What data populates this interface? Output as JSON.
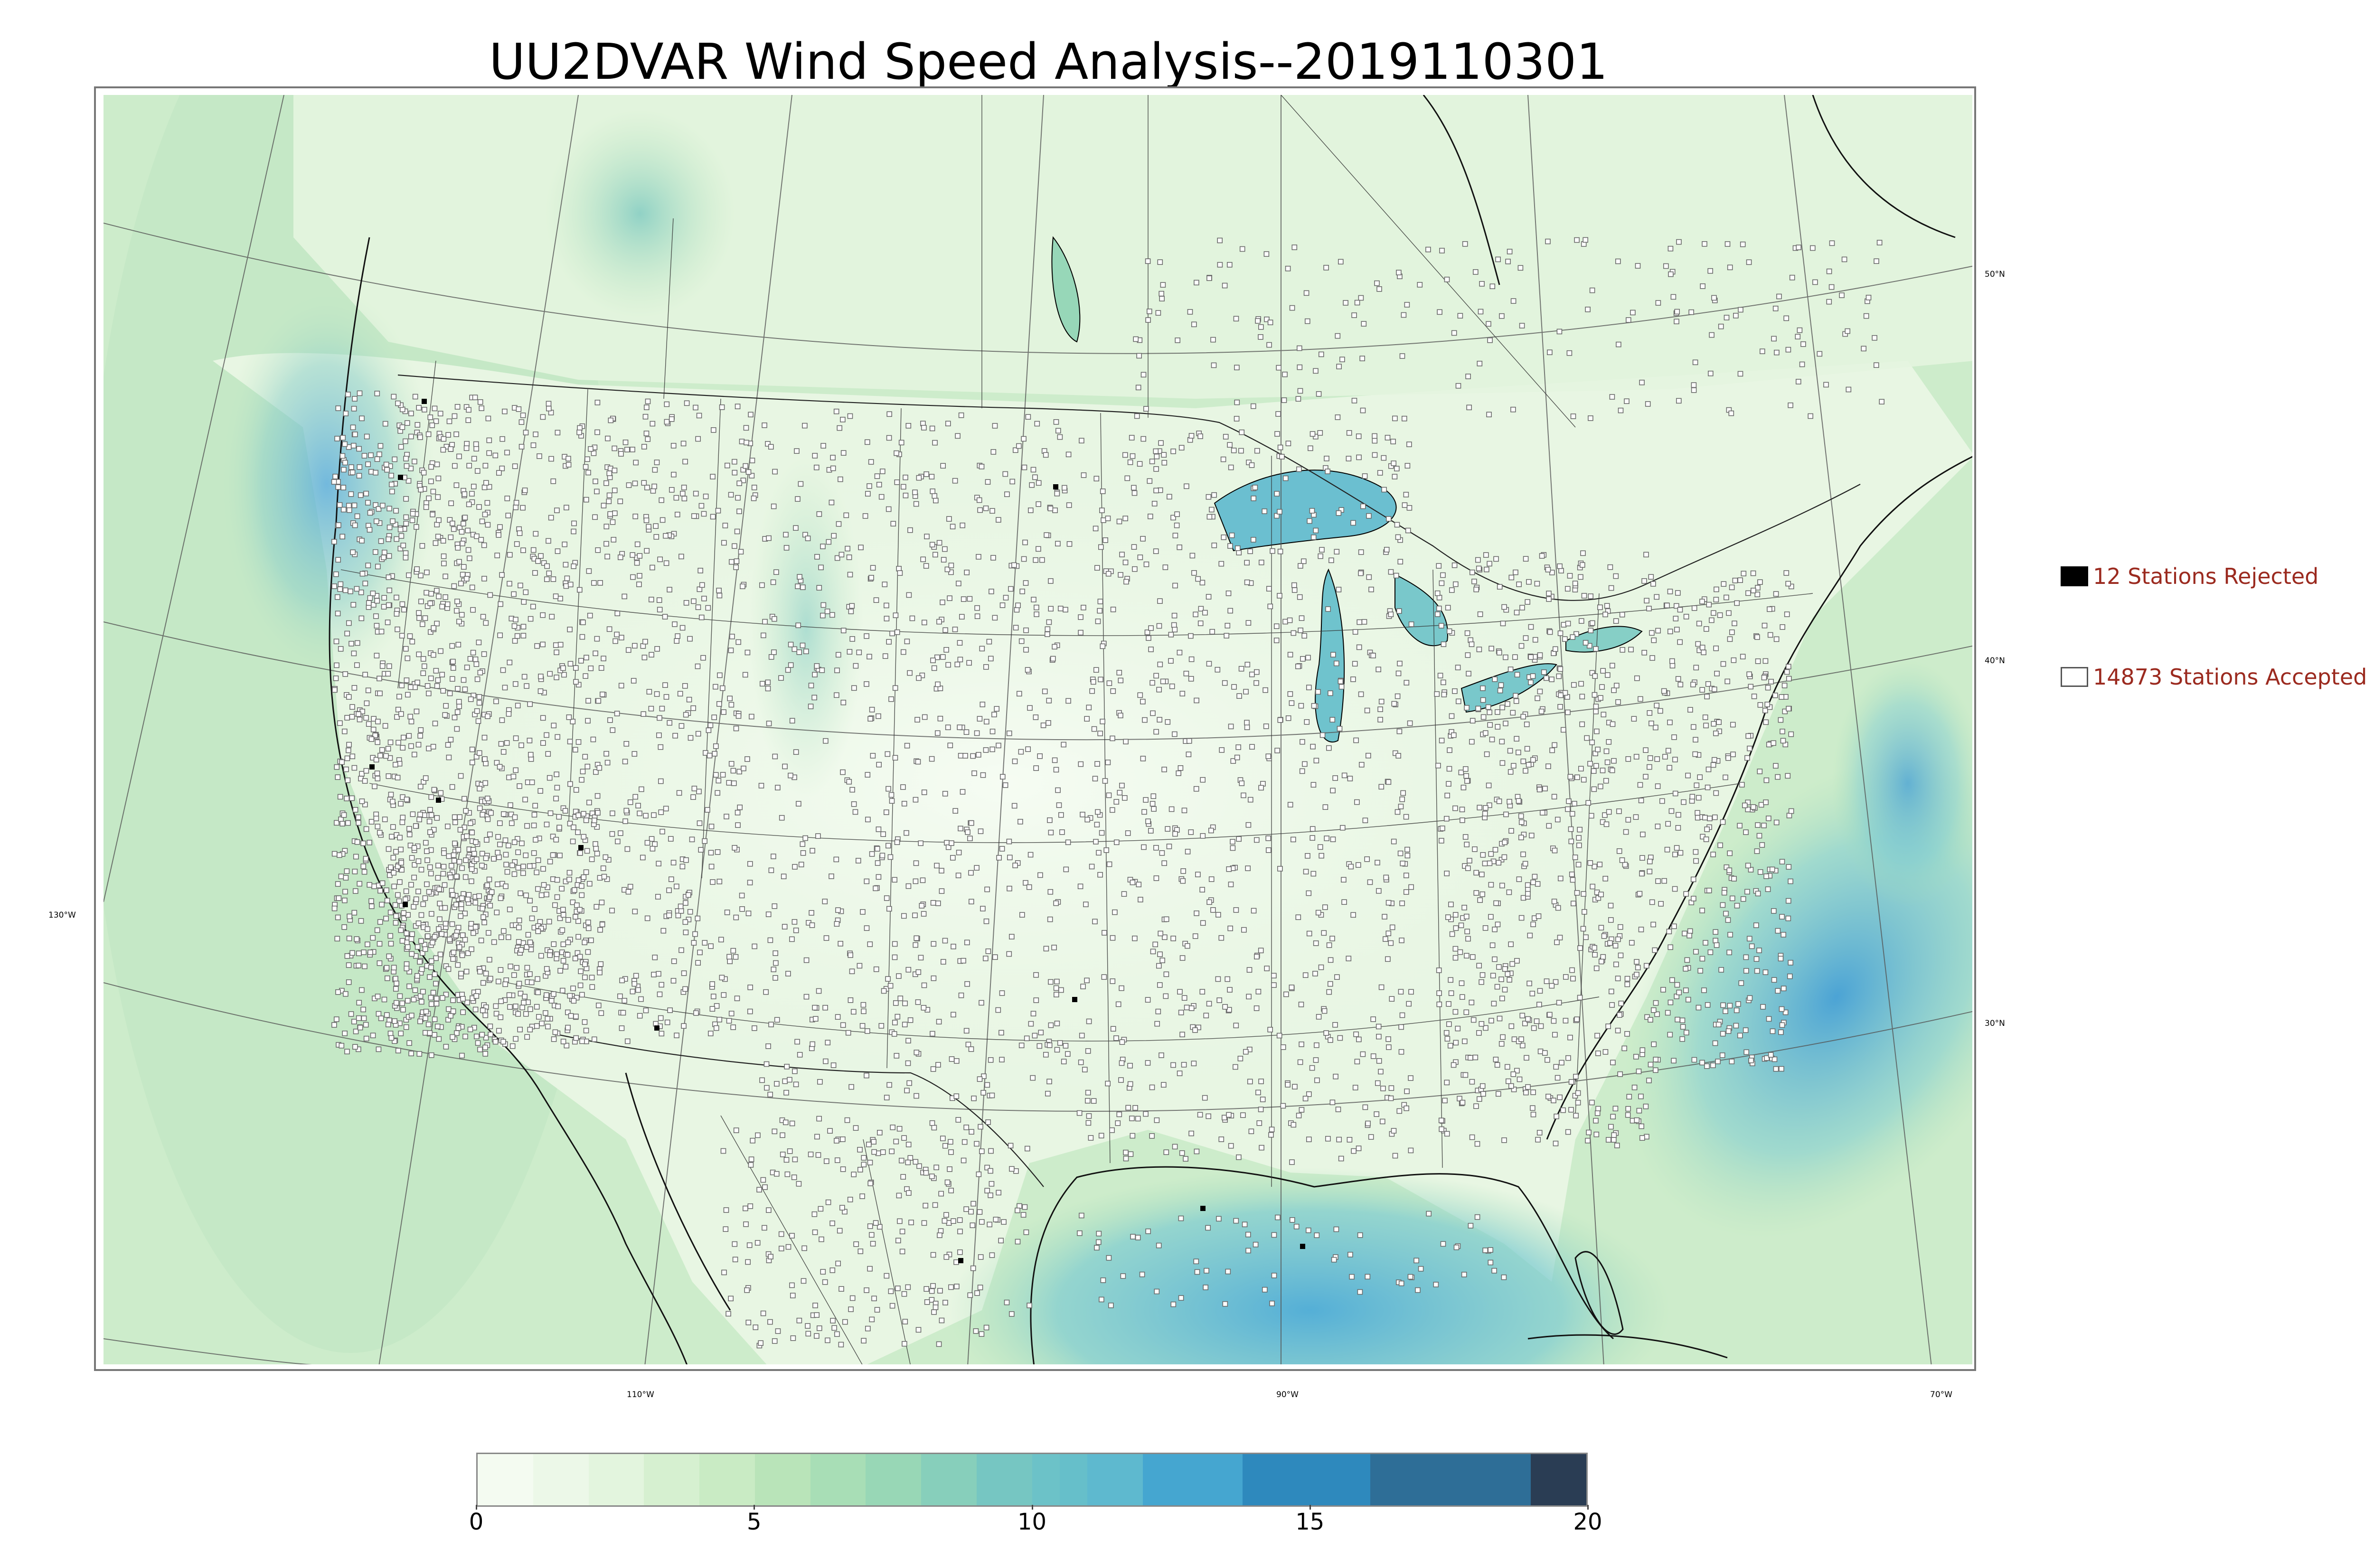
{
  "title": "UU2DVAR Wind Speed Analysis--2019110301",
  "map": {
    "latitude_labels": [
      "50°N",
      "40°N",
      "30°N"
    ],
    "longitude_labels": [
      "130°W",
      "110°W",
      "90°W",
      "70°W"
    ],
    "background_color": "#ddf2d6",
    "water_high_wind_color": "#5fb6d8",
    "station_accepted_color": "#ffffff",
    "station_rejected_color": "#000000",
    "boundary_color": "#000000"
  },
  "legend": {
    "rejected": {
      "label": "12 Stations Rejected",
      "count": 12,
      "symbol": "filled-square"
    },
    "accepted": {
      "label": "14873 Stations Accepted",
      "count": 14873,
      "symbol": "open-square"
    },
    "text_color": "#9b2a1f"
  },
  "colorbar": {
    "min": 0,
    "max": 20,
    "ticks": [
      "0",
      "5",
      "10",
      "15",
      "20"
    ],
    "tick_values": [
      0,
      5,
      10,
      15,
      20
    ],
    "segments": [
      {
        "from": 0,
        "to": 1,
        "color": "#f4fbf1"
      },
      {
        "from": 1,
        "to": 2,
        "color": "#ecf8e8"
      },
      {
        "from": 2,
        "to": 3,
        "color": "#e3f5de"
      },
      {
        "from": 3,
        "to": 4,
        "color": "#d6f0d0"
      },
      {
        "from": 4,
        "to": 5,
        "color": "#c9ebc4"
      },
      {
        "from": 5,
        "to": 6,
        "color": "#b9e4b9"
      },
      {
        "from": 6,
        "to": 7,
        "color": "#a8deb6"
      },
      {
        "from": 7,
        "to": 8,
        "color": "#98d7b6"
      },
      {
        "from": 8,
        "to": 9,
        "color": "#87cfbb"
      },
      {
        "from": 9,
        "to": 10,
        "color": "#76c6c2"
      },
      {
        "from": 10,
        "to": 10.5,
        "color": "#6cc2c8"
      },
      {
        "from": 10.5,
        "to": 11,
        "color": "#66bfca"
      },
      {
        "from": 11,
        "to": 12,
        "color": "#5eb9cf"
      },
      {
        "from": 12,
        "to": 13.8,
        "color": "#45a6d0"
      },
      {
        "from": 13.8,
        "to": 16.1,
        "color": "#2e89bd"
      },
      {
        "from": 16.1,
        "to": 19,
        "color": "#2e6e97"
      },
      {
        "from": 19,
        "to": 20,
        "color": "#2a3d54"
      }
    ]
  }
}
